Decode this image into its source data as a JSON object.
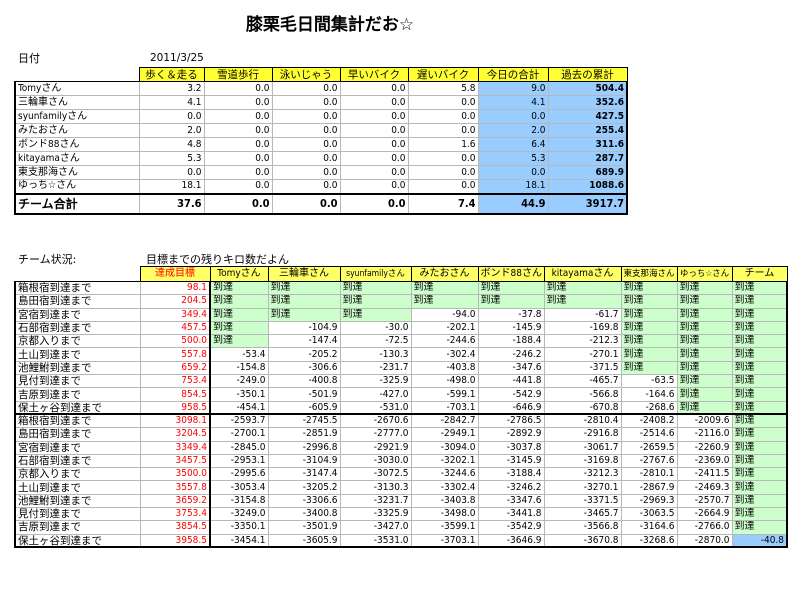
{
  "title": "膝栗毛日間集計だお☆",
  "date_label": "日付",
  "date": "2011/3/25",
  "summary": {
    "headers": [
      "歩く＆走る",
      "雪道歩行",
      "泳いじゃう",
      "早いバイク",
      "遅いバイク",
      "今日の合計",
      "過去の累計"
    ],
    "rows": [
      {
        "name": "Tomyさん",
        "values": [
          "3.2",
          "0.0",
          "0.0",
          "0.0",
          "5.8",
          "9.0",
          "504.4"
        ]
      },
      {
        "name": "三輪車さん",
        "values": [
          "4.1",
          "0.0",
          "0.0",
          "0.0",
          "0.0",
          "4.1",
          "352.6"
        ]
      },
      {
        "name": "syunfamilyさん",
        "values": [
          "0.0",
          "0.0",
          "0.0",
          "0.0",
          "0.0",
          "0.0",
          "427.5"
        ]
      },
      {
        "name": "みたおさん",
        "values": [
          "2.0",
          "0.0",
          "0.0",
          "0.0",
          "0.0",
          "2.0",
          "255.4"
        ]
      },
      {
        "name": "ボンド88さん",
        "values": [
          "4.8",
          "0.0",
          "0.0",
          "0.0",
          "1.6",
          "6.4",
          "311.6"
        ]
      },
      {
        "name": "kitayamaさん",
        "values": [
          "5.3",
          "0.0",
          "0.0",
          "0.0",
          "0.0",
          "5.3",
          "287.7"
        ]
      },
      {
        "name": "東支那海さん",
        "values": [
          "0.0",
          "0.0",
          "0.0",
          "0.0",
          "0.0",
          "0.0",
          "689.9"
        ]
      },
      {
        "name": "ゆっち☆さん",
        "values": [
          "18.1",
          "0.0",
          "0.0",
          "0.0",
          "0.0",
          "18.1",
          "1088.6"
        ]
      }
    ],
    "total": {
      "name": "チーム合計",
      "values": [
        "37.6",
        "0.0",
        "0.0",
        "0.0",
        "7.4",
        "44.9",
        "3917.7"
      ]
    }
  },
  "status_label": "チーム状況:",
  "status_note": "目標までの残りキロ数だよん",
  "progress": {
    "headers": [
      "達成目標",
      "Tomyさん",
      "三輪車さん",
      "syunfamilyさん",
      "みたおさん",
      "ボンド88さん",
      "kitayamaさん",
      "東支那海さん",
      "ゆっち☆さん",
      "チーム"
    ],
    "reached_text": "到達",
    "rows": [
      {
        "name": "箱根宿到達まで",
        "target": "98.1",
        "values": [
          "到達",
          "到達",
          "到達",
          "到達",
          "到達",
          "到達",
          "到達",
          "到達",
          "到達"
        ]
      },
      {
        "name": "島田宿到達まで",
        "target": "204.5",
        "values": [
          "到達",
          "到達",
          "到達",
          "到達",
          "到達",
          "到達",
          "到達",
          "到達",
          "到達"
        ]
      },
      {
        "name": "宮宿到達まで",
        "target": "349.4",
        "values": [
          "到達",
          "到達",
          "到達",
          "-94.0",
          "-37.8",
          "-61.7",
          "到達",
          "到達",
          "到達"
        ]
      },
      {
        "name": "石部宿到達まで",
        "target": "457.5",
        "values": [
          "到達",
          "-104.9",
          "-30.0",
          "-202.1",
          "-145.9",
          "-169.8",
          "到達",
          "到達",
          "到達"
        ]
      },
      {
        "name": "京都入りまで",
        "target": "500.0",
        "values": [
          "到達",
          "-147.4",
          "-72.5",
          "-244.6",
          "-188.4",
          "-212.3",
          "到達",
          "到達",
          "到達"
        ]
      },
      {
        "name": "土山到達まで",
        "target": "557.8",
        "values": [
          "-53.4",
          "-205.2",
          "-130.3",
          "-302.4",
          "-246.2",
          "-270.1",
          "到達",
          "到達",
          "到達"
        ]
      },
      {
        "name": "池鯉鮒到達まで",
        "target": "659.2",
        "values": [
          "-154.8",
          "-306.6",
          "-231.7",
          "-403.8",
          "-347.6",
          "-371.5",
          "到達",
          "到達",
          "到達"
        ]
      },
      {
        "name": "見付到達まで",
        "target": "753.4",
        "values": [
          "-249.0",
          "-400.8",
          "-325.9",
          "-498.0",
          "-441.8",
          "-465.7",
          "-63.5",
          "到達",
          "到達"
        ]
      },
      {
        "name": "吉原到達まで",
        "target": "854.5",
        "values": [
          "-350.1",
          "-501.9",
          "-427.0",
          "-599.1",
          "-542.9",
          "-566.8",
          "-164.6",
          "到達",
          "到達"
        ]
      },
      {
        "name": "保土ヶ谷到達まで",
        "target": "958.5",
        "values": [
          "-454.1",
          "-605.9",
          "-531.0",
          "-703.1",
          "-646.9",
          "-670.8",
          "-268.6",
          "到達",
          "到達"
        ]
      },
      {
        "name": "箱根宿到達まで",
        "target": "3098.1",
        "values": [
          "-2593.7",
          "-2745.5",
          "-2670.6",
          "-2842.7",
          "-2786.5",
          "-2810.4",
          "-2408.2",
          "-2009.6",
          "到達"
        ]
      },
      {
        "name": "島田宿到達まで",
        "target": "3204.5",
        "values": [
          "-2700.1",
          "-2851.9",
          "-2777.0",
          "-2949.1",
          "-2892.9",
          "-2916.8",
          "-2514.6",
          "-2116.0",
          "到達"
        ]
      },
      {
        "name": "宮宿到達まで",
        "target": "3349.4",
        "values": [
          "-2845.0",
          "-2996.8",
          "-2921.9",
          "-3094.0",
          "-3037.8",
          "-3061.7",
          "-2659.5",
          "-2260.9",
          "到達"
        ]
      },
      {
        "name": "石部宿到達まで",
        "target": "3457.5",
        "values": [
          "-2953.1",
          "-3104.9",
          "-3030.0",
          "-3202.1",
          "-3145.9",
          "-3169.8",
          "-2767.6",
          "-2369.0",
          "到達"
        ]
      },
      {
        "name": "京都入りまで",
        "target": "3500.0",
        "values": [
          "-2995.6",
          "-3147.4",
          "-3072.5",
          "-3244.6",
          "-3188.4",
          "-3212.3",
          "-2810.1",
          "-2411.5",
          "到達"
        ]
      },
      {
        "name": "土山到達まで",
        "target": "3557.8",
        "values": [
          "-3053.4",
          "-3205.2",
          "-3130.3",
          "-3302.4",
          "-3246.2",
          "-3270.1",
          "-2867.9",
          "-2469.3",
          "到達"
        ]
      },
      {
        "name": "池鯉鮒到達まで",
        "target": "3659.2",
        "values": [
          "-3154.8",
          "-3306.6",
          "-3231.7",
          "-3403.8",
          "-3347.6",
          "-3371.5",
          "-2969.3",
          "-2570.7",
          "到達"
        ]
      },
      {
        "name": "見付到達まで",
        "target": "3753.4",
        "values": [
          "-3249.0",
          "-3400.8",
          "-3325.9",
          "-3498.0",
          "-3441.8",
          "-3465.7",
          "-3063.5",
          "-2664.9",
          "到達"
        ]
      },
      {
        "name": "吉原到達まで",
        "target": "3854.5",
        "values": [
          "-3350.1",
          "-3501.9",
          "-3427.0",
          "-3599.1",
          "-3542.9",
          "-3566.8",
          "-3164.6",
          "-2766.0",
          "到達"
        ]
      },
      {
        "name": "保土ヶ谷到達まで",
        "target": "3958.5",
        "values": [
          "-3454.1",
          "-3605.9",
          "-3531.0",
          "-3703.1",
          "-3646.9",
          "-3670.8",
          "-3268.6",
          "-2870.0",
          "-40.8"
        ]
      }
    ]
  },
  "colors": {
    "header_yellow": "#ffff33",
    "reached_green": "#ccffcc",
    "total_blue": "#99ccff",
    "target_red": "#ff0000"
  }
}
